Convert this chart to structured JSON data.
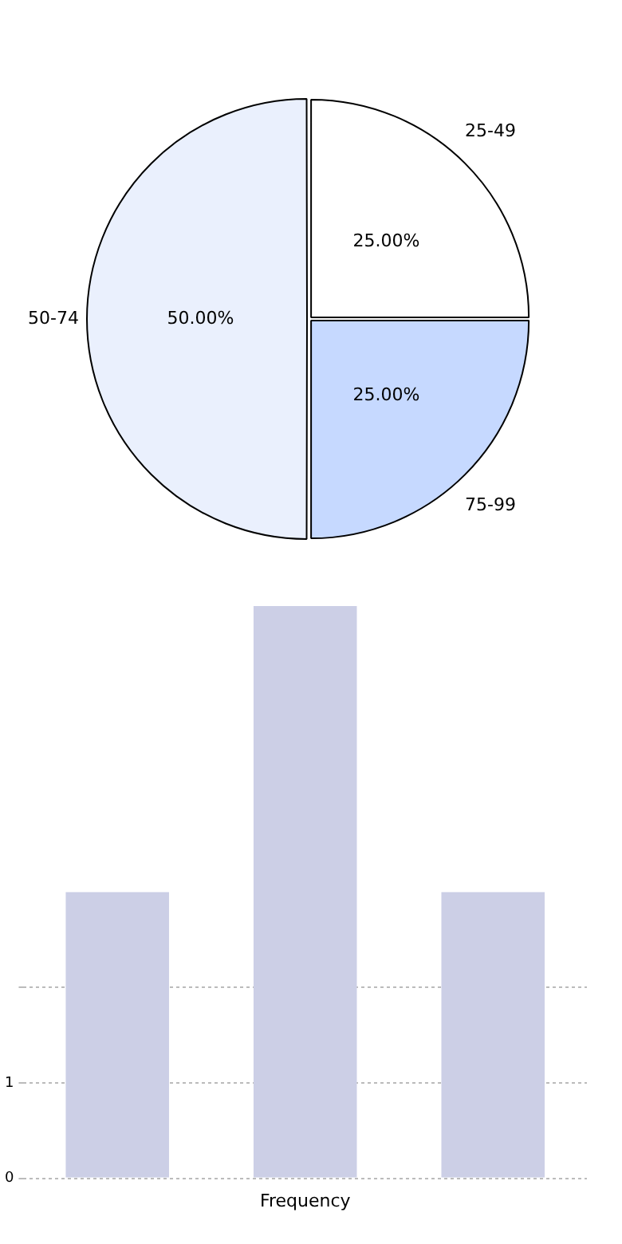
{
  "chart_data": [
    {
      "type": "pie",
      "categories": [
        "25-49",
        "75-99",
        "50-74"
      ],
      "values": [
        25,
        25,
        50
      ],
      "colors": [
        "#ffffff",
        "#c6d9ff",
        "#eaf0fd"
      ],
      "value_labels": [
        "25.00%",
        "25.00%",
        "50.00%"
      ]
    },
    {
      "type": "bar",
      "categories": [
        null,
        null,
        null
      ],
      "values": [
        3,
        6,
        3
      ],
      "color": "#cccfe6",
      "xlabel": "Frequency",
      "ylim": [
        0,
        6
      ],
      "yticks": [
        0,
        1,
        {
          "value": 2,
          "label": null
        }
      ],
      "grid": "y"
    }
  ]
}
